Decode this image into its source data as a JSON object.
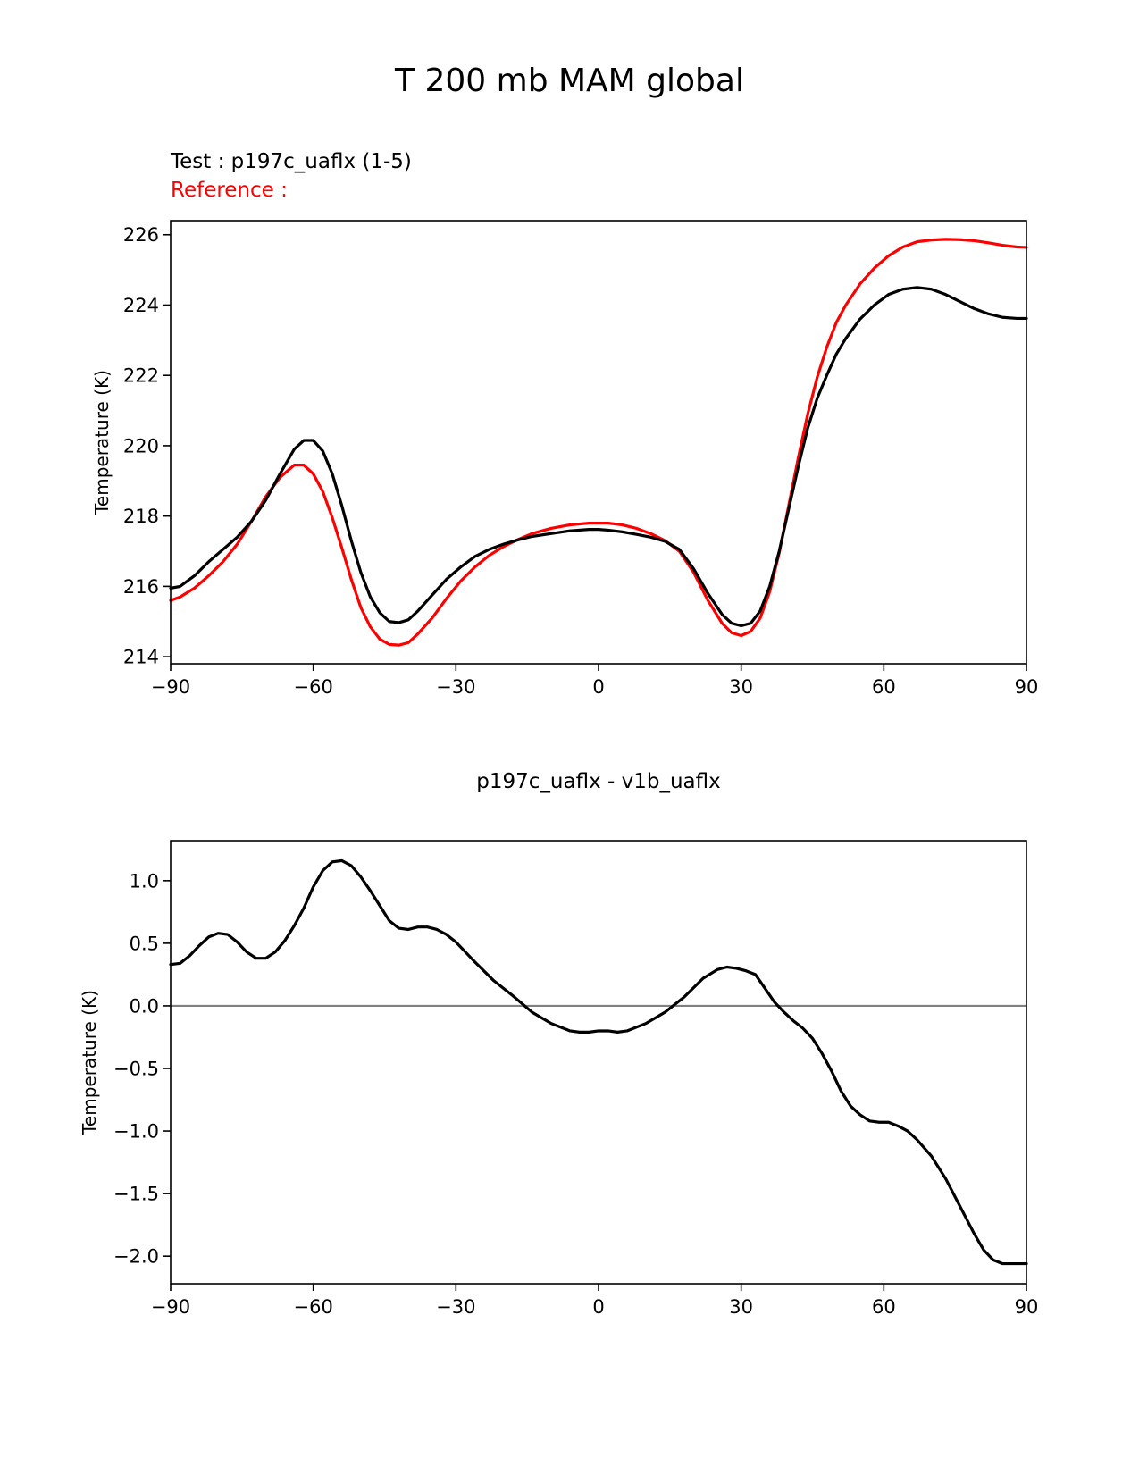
{
  "figure": {
    "title": "T 200 mb MAM global"
  },
  "chart_data": [
    {
      "type": "line",
      "title_left_test": "Test : p197c_uaflx (1-5)",
      "title_left_reference": "Reference :",
      "xlabel": "",
      "ylabel": "Temperature (K)",
      "xlim": [
        -90,
        90
      ],
      "ylim": [
        213.8,
        226.4
      ],
      "xticks": [
        -90,
        -60,
        -30,
        0,
        30,
        60,
        90
      ],
      "xtick_labels": [
        "−90",
        "−60",
        "−30",
        "0",
        "30",
        "60",
        "90"
      ],
      "yticks": [
        214,
        216,
        218,
        220,
        222,
        224,
        226
      ],
      "ytick_labels": [
        "214",
        "216",
        "218",
        "220",
        "222",
        "224",
        "226"
      ],
      "grid": false,
      "x": [
        -90,
        -88,
        -85,
        -82,
        -79,
        -76,
        -73,
        -70,
        -67,
        -64,
        -62,
        -60,
        -58,
        -56,
        -54,
        -52,
        -50,
        -48,
        -46,
        -44,
        -42,
        -40,
        -38,
        -35,
        -32,
        -29,
        -26,
        -23,
        -20,
        -17,
        -14,
        -10,
        -6,
        -2,
        0,
        2,
        5,
        8,
        11,
        14,
        17,
        20,
        23,
        26,
        28,
        30,
        32,
        34,
        36,
        38,
        40,
        42,
        44,
        46,
        48,
        50,
        52,
        55,
        58,
        61,
        64,
        67,
        70,
        73,
        76,
        79,
        82,
        85,
        88,
        90
      ],
      "series": [
        {
          "color": "#000000",
          "values": [
            215.95,
            216.0,
            216.3,
            216.7,
            217.05,
            217.4,
            217.85,
            218.45,
            219.2,
            219.9,
            220.15,
            220.15,
            219.85,
            219.2,
            218.3,
            217.3,
            216.4,
            215.7,
            215.25,
            215.0,
            214.97,
            215.05,
            215.3,
            215.75,
            216.2,
            216.55,
            216.85,
            217.05,
            217.2,
            217.32,
            217.42,
            217.5,
            217.58,
            217.62,
            217.62,
            217.6,
            217.55,
            217.48,
            217.4,
            217.28,
            217.05,
            216.5,
            215.8,
            215.2,
            214.95,
            214.88,
            214.95,
            215.3,
            216.0,
            217.0,
            218.2,
            219.4,
            220.5,
            221.35,
            222.0,
            222.6,
            223.05,
            223.6,
            224.0,
            224.3,
            224.45,
            224.5,
            224.45,
            224.3,
            224.1,
            223.9,
            223.75,
            223.65,
            223.62,
            223.62
          ]
        },
        {
          "color": "#ff0000",
          "values": [
            215.6,
            215.7,
            215.95,
            216.3,
            216.7,
            217.2,
            217.85,
            218.55,
            219.1,
            219.45,
            219.45,
            219.2,
            218.7,
            217.95,
            217.1,
            216.2,
            215.4,
            214.85,
            214.5,
            214.35,
            214.33,
            214.4,
            214.65,
            215.1,
            215.65,
            216.15,
            216.55,
            216.88,
            217.13,
            217.33,
            217.5,
            217.65,
            217.75,
            217.8,
            217.8,
            217.8,
            217.75,
            217.65,
            217.5,
            217.3,
            217.0,
            216.4,
            215.6,
            214.95,
            214.68,
            214.6,
            214.72,
            215.1,
            215.85,
            216.95,
            218.3,
            219.65,
            220.9,
            221.95,
            222.8,
            223.5,
            224.0,
            224.6,
            225.05,
            225.4,
            225.65,
            225.8,
            225.85,
            225.87,
            225.86,
            225.83,
            225.77,
            225.7,
            225.65,
            225.64
          ]
        }
      ]
    },
    {
      "type": "line",
      "title": "p197c_uaflx - v1b_uaflx",
      "xlabel": "",
      "ylabel": "Temperature (K)",
      "xlim": [
        -90,
        90
      ],
      "ylim": [
        -2.22,
        1.32
      ],
      "xticks": [
        -90,
        -60,
        -30,
        0,
        30,
        60,
        90
      ],
      "xtick_labels": [
        "−90",
        "−60",
        "−30",
        "0",
        "30",
        "60",
        "90"
      ],
      "yticks": [
        1.0,
        0.5,
        0.0,
        -0.5,
        -1.0,
        -1.5,
        -2.0
      ],
      "ytick_labels": [
        "1.0",
        "0.5",
        "0.0",
        "−0.5",
        "−1.0",
        "−1.5",
        "−2.0"
      ],
      "zero_line": 0,
      "grid": false,
      "x": [
        -90,
        -88,
        -86,
        -84,
        -82,
        -80,
        -78,
        -76,
        -74,
        -72,
        -70,
        -68,
        -66,
        -64,
        -62,
        -60,
        -58,
        -56,
        -54,
        -52,
        -50,
        -48,
        -46,
        -44,
        -42,
        -40,
        -38,
        -36,
        -34,
        -32,
        -30,
        -28,
        -26,
        -22,
        -18,
        -14,
        -10,
        -6,
        -4,
        -2,
        0,
        2,
        4,
        6,
        10,
        14,
        18,
        22,
        25,
        27,
        29,
        31,
        33,
        35,
        37,
        39,
        41,
        43,
        45,
        47,
        49,
        51,
        53,
        55,
        57,
        59,
        61,
        63,
        65,
        67,
        70,
        73,
        76,
        79,
        81,
        83,
        85,
        87,
        90
      ],
      "values": [
        0.33,
        0.34,
        0.4,
        0.48,
        0.55,
        0.58,
        0.57,
        0.51,
        0.43,
        0.38,
        0.38,
        0.43,
        0.52,
        0.64,
        0.78,
        0.95,
        1.08,
        1.15,
        1.16,
        1.12,
        1.03,
        0.92,
        0.8,
        0.68,
        0.62,
        0.61,
        0.63,
        0.63,
        0.61,
        0.57,
        0.51,
        0.43,
        0.35,
        0.2,
        0.08,
        -0.05,
        -0.14,
        -0.2,
        -0.21,
        -0.21,
        -0.2,
        -0.2,
        -0.21,
        -0.2,
        -0.14,
        -0.05,
        0.07,
        0.22,
        0.29,
        0.31,
        0.3,
        0.28,
        0.25,
        0.14,
        0.03,
        -0.05,
        -0.12,
        -0.18,
        -0.26,
        -0.38,
        -0.52,
        -0.68,
        -0.8,
        -0.87,
        -0.92,
        -0.93,
        -0.93,
        -0.96,
        -1.0,
        -1.07,
        -1.2,
        -1.38,
        -1.6,
        -1.82,
        -1.95,
        -2.03,
        -2.06,
        -2.06,
        -2.06
      ]
    }
  ]
}
